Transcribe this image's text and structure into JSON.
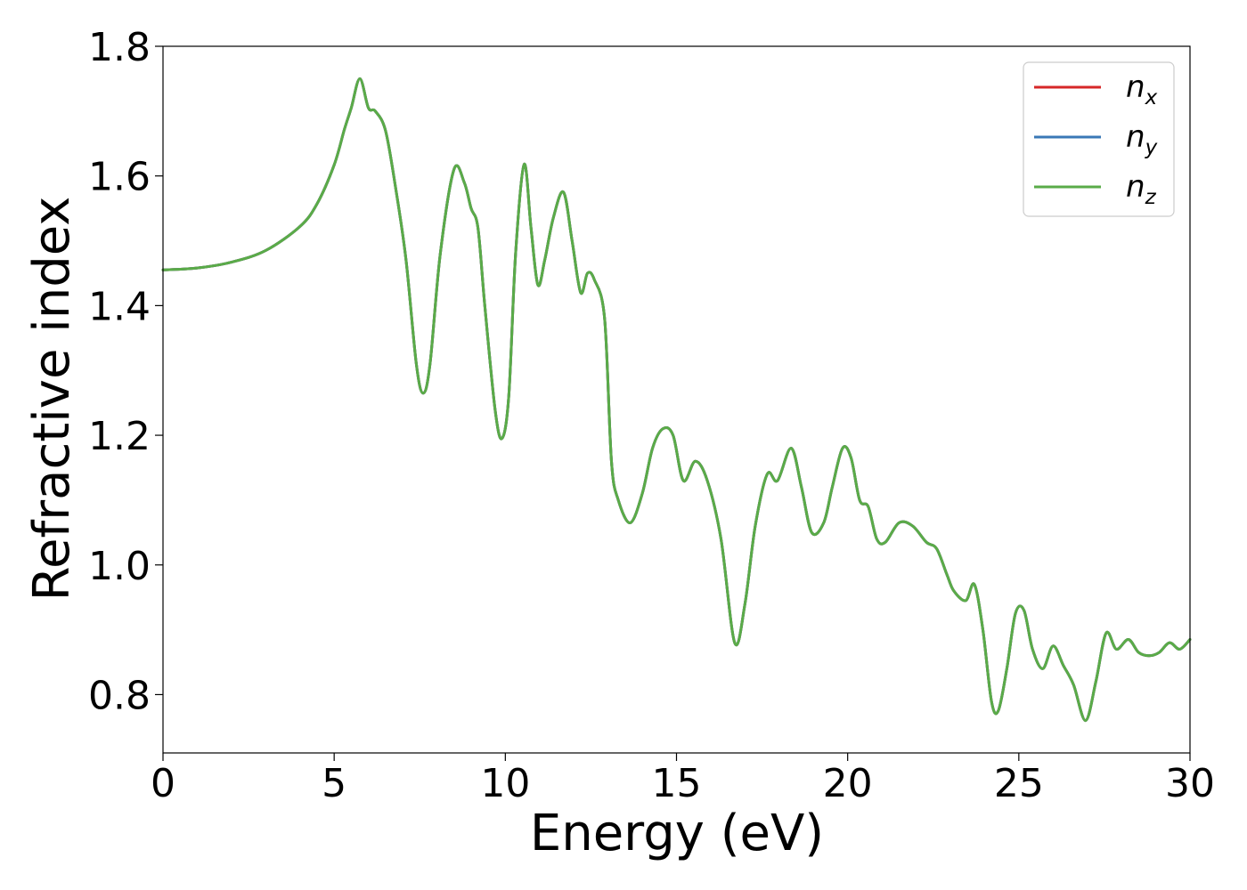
{
  "chart_data": {
    "type": "line",
    "title": "",
    "xlabel": "Energy (eV)",
    "ylabel": "Refractive index",
    "xlim": [
      0,
      30
    ],
    "ylim": [
      0.71,
      1.8
    ],
    "xticks": [
      0,
      5,
      10,
      15,
      20,
      25,
      30
    ],
    "yticks": [
      0.8,
      1.0,
      1.2,
      1.4,
      1.6,
      1.8
    ],
    "xtick_labels": [
      "0",
      "5",
      "10",
      "15",
      "20",
      "25",
      "30"
    ],
    "ytick_labels": [
      "0.8",
      "1.0",
      "1.2",
      "1.4",
      "1.6",
      "1.8"
    ],
    "grid": false,
    "legend_position": "top-right",
    "x": [
      0,
      1,
      2,
      3,
      4,
      4.5,
      5,
      5.3,
      5.5,
      5.75,
      6.0,
      6.2,
      6.5,
      6.8,
      7.1,
      7.4,
      7.6,
      7.8,
      8.1,
      8.5,
      8.8,
      9.0,
      9.2,
      9.4,
      9.7,
      9.9,
      10.1,
      10.3,
      10.55,
      10.75,
      10.95,
      11.15,
      11.4,
      11.7,
      11.95,
      12.2,
      12.4,
      12.6,
      12.9,
      13.1,
      13.3,
      13.65,
      14.0,
      14.3,
      14.6,
      14.9,
      15.2,
      15.55,
      15.9,
      16.3,
      16.7,
      17.0,
      17.3,
      17.65,
      17.95,
      18.35,
      18.65,
      18.95,
      19.3,
      19.55,
      19.85,
      20.1,
      20.35,
      20.6,
      20.85,
      21.1,
      21.5,
      21.9,
      22.3,
      22.6,
      22.9,
      23.1,
      23.45,
      23.7,
      23.95,
      24.2,
      24.4,
      24.65,
      24.9,
      25.15,
      25.4,
      25.7,
      26.0,
      26.3,
      26.6,
      26.95,
      27.25,
      27.55,
      27.85,
      28.2,
      28.5,
      28.8,
      29.1,
      29.4,
      29.7,
      30.0
    ],
    "series": [
      {
        "name": "n_x",
        "name_base": "n",
        "name_sub": "x",
        "color": "#d62728",
        "values": [
          1.455,
          1.458,
          1.467,
          1.485,
          1.522,
          1.557,
          1.617,
          1.672,
          1.705,
          1.75,
          1.705,
          1.7,
          1.67,
          1.58,
          1.47,
          1.31,
          1.265,
          1.31,
          1.48,
          1.61,
          1.59,
          1.55,
          1.52,
          1.4,
          1.24,
          1.195,
          1.26,
          1.48,
          1.618,
          1.52,
          1.432,
          1.47,
          1.535,
          1.575,
          1.5,
          1.42,
          1.45,
          1.44,
          1.38,
          1.16,
          1.1,
          1.065,
          1.11,
          1.18,
          1.21,
          1.2,
          1.13,
          1.16,
          1.13,
          1.04,
          0.88,
          0.94,
          1.06,
          1.14,
          1.13,
          1.18,
          1.12,
          1.05,
          1.065,
          1.12,
          1.18,
          1.165,
          1.1,
          1.09,
          1.04,
          1.035,
          1.065,
          1.06,
          1.035,
          1.025,
          0.985,
          0.96,
          0.945,
          0.97,
          0.9,
          0.79,
          0.775,
          0.84,
          0.925,
          0.93,
          0.87,
          0.84,
          0.875,
          0.845,
          0.815,
          0.76,
          0.82,
          0.895,
          0.87,
          0.885,
          0.865,
          0.86,
          0.865,
          0.88,
          0.87,
          0.885
        ]
      },
      {
        "name": "n_y",
        "name_base": "n",
        "name_sub": "y",
        "color": "#3a78b6",
        "values": [
          1.455,
          1.458,
          1.467,
          1.485,
          1.522,
          1.557,
          1.617,
          1.672,
          1.705,
          1.75,
          1.705,
          1.7,
          1.67,
          1.58,
          1.47,
          1.31,
          1.265,
          1.31,
          1.48,
          1.61,
          1.59,
          1.55,
          1.52,
          1.4,
          1.24,
          1.195,
          1.26,
          1.48,
          1.618,
          1.52,
          1.432,
          1.47,
          1.535,
          1.575,
          1.5,
          1.42,
          1.45,
          1.44,
          1.38,
          1.16,
          1.1,
          1.065,
          1.11,
          1.18,
          1.21,
          1.2,
          1.13,
          1.16,
          1.13,
          1.04,
          0.88,
          0.94,
          1.06,
          1.14,
          1.13,
          1.18,
          1.12,
          1.05,
          1.065,
          1.12,
          1.18,
          1.165,
          1.1,
          1.09,
          1.04,
          1.035,
          1.065,
          1.06,
          1.035,
          1.025,
          0.985,
          0.96,
          0.945,
          0.97,
          0.9,
          0.79,
          0.775,
          0.84,
          0.925,
          0.93,
          0.87,
          0.84,
          0.875,
          0.845,
          0.815,
          0.76,
          0.82,
          0.895,
          0.87,
          0.885,
          0.865,
          0.86,
          0.865,
          0.88,
          0.87,
          0.885
        ]
      },
      {
        "name": "n_z",
        "name_base": "n",
        "name_sub": "z",
        "color": "#5aab48",
        "values": [
          1.455,
          1.458,
          1.467,
          1.485,
          1.522,
          1.557,
          1.617,
          1.672,
          1.705,
          1.75,
          1.705,
          1.7,
          1.67,
          1.58,
          1.47,
          1.31,
          1.265,
          1.31,
          1.48,
          1.61,
          1.59,
          1.55,
          1.52,
          1.4,
          1.24,
          1.195,
          1.26,
          1.48,
          1.618,
          1.52,
          1.432,
          1.47,
          1.535,
          1.575,
          1.5,
          1.42,
          1.45,
          1.44,
          1.38,
          1.16,
          1.1,
          1.065,
          1.11,
          1.18,
          1.21,
          1.2,
          1.13,
          1.16,
          1.13,
          1.04,
          0.88,
          0.94,
          1.06,
          1.14,
          1.13,
          1.18,
          1.12,
          1.05,
          1.065,
          1.12,
          1.18,
          1.165,
          1.1,
          1.09,
          1.04,
          1.035,
          1.065,
          1.06,
          1.035,
          1.025,
          0.985,
          0.96,
          0.945,
          0.97,
          0.9,
          0.79,
          0.775,
          0.84,
          0.925,
          0.93,
          0.87,
          0.84,
          0.875,
          0.845,
          0.815,
          0.76,
          0.82,
          0.895,
          0.87,
          0.885,
          0.865,
          0.86,
          0.865,
          0.88,
          0.87,
          0.885
        ]
      }
    ]
  }
}
